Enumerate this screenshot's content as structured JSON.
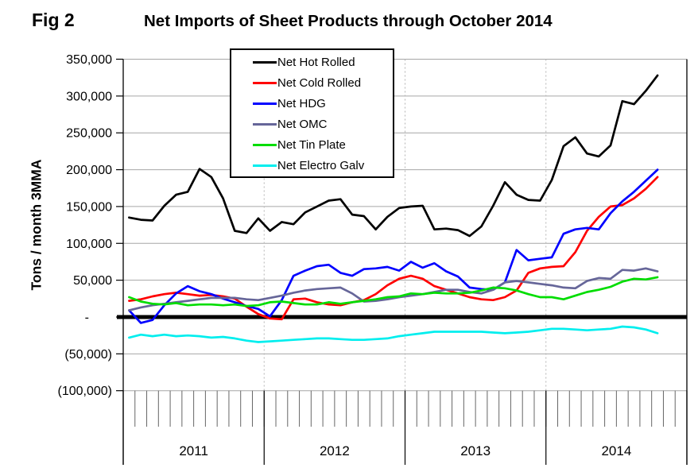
{
  "header": {
    "fig_label": "Fig 2",
    "title": "Net Imports of Sheet Products through October 2014"
  },
  "y_axis": {
    "title": "Tons / month 3MMA",
    "tick_labels": [
      "350,000",
      "300,000",
      "250,000",
      "200,000",
      "150,000",
      "100,000",
      "50,000",
      "-",
      "(50,000)",
      "(100,000)"
    ],
    "max": 350000,
    "min": -100000,
    "step": 50000
  },
  "x_axis": {
    "year_labels": [
      "2011",
      "2012",
      "2013",
      "2014"
    ],
    "months_per_year": 12,
    "total_slots": 48
  },
  "legend": {
    "items": [
      {
        "label": "Net Hot Rolled",
        "color": "#000000"
      },
      {
        "label": "Net Cold Rolled",
        "color": "#FF0000"
      },
      {
        "label": "Net HDG",
        "color": "#0000FF"
      },
      {
        "label": "Net OMC",
        "color": "#666699"
      },
      {
        "label": "Net Tin Plate",
        "color": "#00DD00"
      },
      {
        "label": "Net Electro Galv",
        "color": "#00EEEE"
      }
    ]
  },
  "chart_data": {
    "type": "line",
    "title": "Net Imports of Sheet Products through October 2014",
    "xlabel": "",
    "ylabel": "Tons / month 3MMA",
    "ylim": [
      -100000,
      350000
    ],
    "grid": true,
    "legend_position": "top-left-inside",
    "zero_line": true,
    "x_months": [
      "2011-01",
      "2011-02",
      "2011-03",
      "2011-04",
      "2011-05",
      "2011-06",
      "2011-07",
      "2011-08",
      "2011-09",
      "2011-10",
      "2011-11",
      "2011-12",
      "2012-01",
      "2012-02",
      "2012-03",
      "2012-04",
      "2012-05",
      "2012-06",
      "2012-07",
      "2012-08",
      "2012-09",
      "2012-10",
      "2012-11",
      "2012-12",
      "2013-01",
      "2013-02",
      "2013-03",
      "2013-04",
      "2013-05",
      "2013-06",
      "2013-07",
      "2013-08",
      "2013-09",
      "2013-10",
      "2013-11",
      "2013-12",
      "2014-01",
      "2014-02",
      "2014-03",
      "2014-04",
      "2014-05",
      "2014-06",
      "2014-07",
      "2014-08",
      "2014-09",
      "2014-10"
    ],
    "series": [
      {
        "name": "Net Hot Rolled",
        "color": "#000000",
        "values": [
          135000,
          132000,
          131000,
          151000,
          166000,
          170000,
          201000,
          190000,
          161000,
          117000,
          114000,
          134000,
          117000,
          129000,
          126000,
          142000,
          150000,
          158000,
          160000,
          139000,
          137000,
          119000,
          136000,
          148000,
          150000,
          151000,
          119000,
          120000,
          118000,
          110000,
          123000,
          151000,
          183000,
          166000,
          159000,
          158000,
          186000,
          232000,
          244000,
          222000,
          218000,
          233000,
          293000,
          289000,
          307000,
          328000
        ]
      },
      {
        "name": "Net Cold Rolled",
        "color": "#FF0000",
        "values": [
          22000,
          24000,
          28000,
          31000,
          33000,
          31000,
          29000,
          30000,
          28000,
          25000,
          14000,
          4000,
          -2000,
          -3000,
          24000,
          25000,
          20000,
          17000,
          16000,
          20000,
          23000,
          31000,
          43000,
          52000,
          56000,
          52000,
          42000,
          37000,
          32000,
          27000,
          24000,
          23000,
          27000,
          36000,
          60000,
          66000,
          68000,
          69000,
          88000,
          117000,
          136000,
          150000,
          152000,
          161000,
          174000,
          190000
        ]
      },
      {
        "name": "Net HDG",
        "color": "#0000FF",
        "values": [
          9000,
          -8000,
          -4000,
          16000,
          32000,
          42000,
          35000,
          31000,
          25000,
          20000,
          15000,
          11000,
          1000,
          23000,
          56000,
          63000,
          69000,
          71000,
          60000,
          56000,
          65000,
          66000,
          68000,
          63000,
          75000,
          67000,
          73000,
          62000,
          55000,
          40000,
          38000,
          37000,
          47000,
          91000,
          77000,
          79000,
          81000,
          113000,
          119000,
          121000,
          119000,
          141000,
          157000,
          170000,
          185000,
          200000
        ]
      },
      {
        "name": "Net OMC",
        "color": "#666699",
        "values": [
          9000,
          13000,
          16000,
          18000,
          20000,
          22000,
          24000,
          26000,
          26000,
          26000,
          24000,
          23000,
          26000,
          29000,
          33000,
          36000,
          38000,
          39000,
          40000,
          32000,
          21000,
          22000,
          24000,
          27000,
          29000,
          31000,
          34000,
          37000,
          37000,
          34000,
          32000,
          37000,
          47000,
          49000,
          47000,
          45000,
          43000,
          40000,
          39000,
          49000,
          53000,
          52000,
          64000,
          63000,
          66000,
          62000
        ]
      },
      {
        "name": "Net Tin Plate",
        "color": "#00DD00",
        "values": [
          27000,
          21000,
          18000,
          17000,
          19000,
          16000,
          17000,
          17000,
          16000,
          17000,
          15000,
          16000,
          20000,
          21000,
          19000,
          17000,
          17000,
          20000,
          18000,
          20000,
          22000,
          24000,
          27000,
          28000,
          32000,
          31000,
          33000,
          32000,
          32000,
          33000,
          36000,
          40000,
          39000,
          36000,
          31000,
          27000,
          27000,
          24000,
          29000,
          34000,
          37000,
          41000,
          48000,
          52000,
          51000,
          54000
        ]
      },
      {
        "name": "Net Electro Galv",
        "color": "#00EEEE",
        "values": [
          -28000,
          -24000,
          -26000,
          -24000,
          -26000,
          -25000,
          -26000,
          -28000,
          -27000,
          -29000,
          -32000,
          -34000,
          -33000,
          -32000,
          -31000,
          -30000,
          -29000,
          -29000,
          -30000,
          -31000,
          -31000,
          -30000,
          -29000,
          -26000,
          -24000,
          -22000,
          -20000,
          -20000,
          -20000,
          -20000,
          -20000,
          -21000,
          -22000,
          -21000,
          -20000,
          -18000,
          -16000,
          -16000,
          -17000,
          -18000,
          -17000,
          -16000,
          -13000,
          -14000,
          -17000,
          -22000
        ]
      }
    ]
  }
}
